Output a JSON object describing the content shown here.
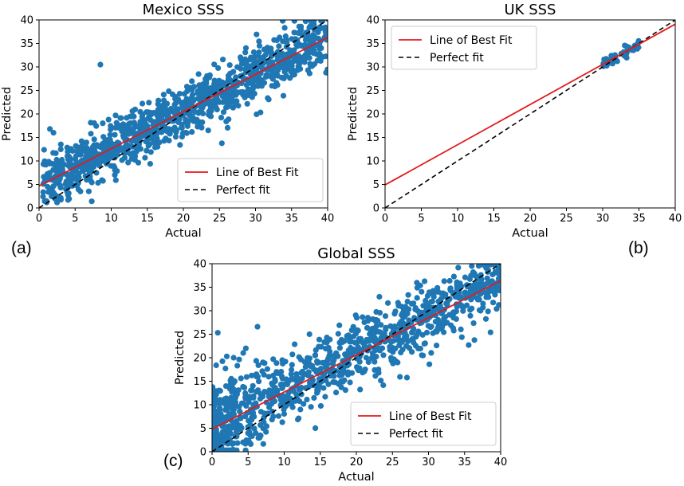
{
  "figure_labels": {
    "a": "(a)",
    "b": "(b)",
    "c": "(c)"
  },
  "colors": {
    "points": "#1f77b4",
    "fit_line": "#e31a1c",
    "perfect_line": "#000000",
    "legend_border": "#cccccc"
  },
  "chart_data": [
    {
      "id": "mexico",
      "type": "scatter",
      "title": "Mexico SSS",
      "xlabel": "Actual",
      "ylabel": "Predicted",
      "xlim": [
        0,
        40
      ],
      "ylim": [
        0,
        40
      ],
      "xticks": [
        0,
        5,
        10,
        15,
        20,
        25,
        30,
        35,
        40
      ],
      "yticks": [
        0,
        5,
        10,
        15,
        20,
        25,
        30,
        35,
        40
      ],
      "legend_position": "lower-right",
      "legend": [
        "Line of Best Fit",
        "Perfect fit"
      ],
      "best_fit": {
        "intercept": 4.7,
        "slope": 0.79
      },
      "perfect_fit": {
        "intercept": 0,
        "slope": 1
      },
      "scatter": {
        "count": 1100,
        "x_range": [
          0.5,
          40
        ],
        "intercept": 4.7,
        "slope": 0.79,
        "noise": 2.9,
        "seed": 11
      },
      "outliers": [
        [
          8.5,
          30.5
        ],
        [
          1.5,
          16.8
        ],
        [
          2.0,
          16.0
        ]
      ]
    },
    {
      "id": "uk",
      "type": "scatter",
      "title": "UK SSS",
      "xlabel": "Actual",
      "ylabel": "Predicted",
      "xlim": [
        0,
        40
      ],
      "ylim": [
        0,
        40
      ],
      "xticks": [
        0,
        5,
        10,
        15,
        20,
        25,
        30,
        35,
        40
      ],
      "yticks": [
        0,
        5,
        10,
        15,
        20,
        25,
        30,
        35,
        40
      ],
      "legend_position": "upper-left",
      "legend": [
        "Line of Best Fit",
        "Perfect fit"
      ],
      "best_fit": {
        "intercept": 4.9,
        "slope": 0.855
      },
      "perfect_fit": {
        "intercept": 0,
        "slope": 1
      },
      "scatter": {
        "count": 45,
        "x_range": [
          30,
          35
        ],
        "intercept": 4.9,
        "slope": 0.855,
        "noise": 0.5,
        "seed": 5
      },
      "outliers": [
        [
          30.2,
          31.6
        ],
        [
          34.8,
          34.9
        ]
      ]
    },
    {
      "id": "global",
      "type": "scatter",
      "title": "Global SSS",
      "xlabel": "Actual",
      "ylabel": "Predicted",
      "xlim": [
        0,
        40
      ],
      "ylim": [
        0,
        40
      ],
      "xticks": [
        0,
        5,
        10,
        15,
        20,
        25,
        30,
        35,
        40
      ],
      "yticks": [
        0,
        5,
        10,
        15,
        20,
        25,
        30,
        35,
        40
      ],
      "legend_position": "lower-right",
      "legend": [
        "Line of Best Fit",
        "Perfect fit"
      ],
      "best_fit": {
        "intercept": 4.8,
        "slope": 0.79
      },
      "perfect_fit": {
        "intercept": 0,
        "slope": 1
      },
      "scatter": {
        "count": 1050,
        "x_range": [
          0,
          40
        ],
        "intercept": 4.8,
        "slope": 0.79,
        "noise": 3.4,
        "seed": 23
      },
      "outliers": [
        [
          0.8,
          25.3
        ],
        [
          6.3,
          26.6
        ],
        [
          3.0,
          20.0
        ],
        [
          13.5,
          25.0
        ],
        [
          36.0,
          39.5
        ]
      ]
    }
  ]
}
